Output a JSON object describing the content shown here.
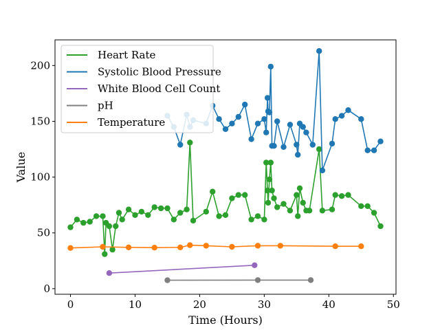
{
  "chart_data": {
    "type": "line",
    "title": "",
    "xlabel": "Time (Hours)",
    "ylabel": "Value",
    "xlim": [
      -2.4,
      50.4
    ],
    "ylim": [
      -5,
      223
    ],
    "xticks": [
      0,
      10,
      20,
      30,
      40,
      50
    ],
    "yticks": [
      0,
      50,
      100,
      150,
      200
    ],
    "grid": false,
    "legend_position": "top-left",
    "series": [
      {
        "name": "Heart Rate",
        "color": "#2ca02c",
        "points": [
          [
            0,
            55
          ],
          [
            1,
            62
          ],
          [
            2,
            59
          ],
          [
            3,
            60
          ],
          [
            4,
            65
          ],
          [
            5,
            65
          ],
          [
            5.3,
            31
          ],
          [
            5.5,
            59
          ],
          [
            6,
            56
          ],
          [
            6.5,
            35
          ],
          [
            7,
            56
          ],
          [
            7.5,
            68
          ],
          [
            8,
            62
          ],
          [
            9,
            71
          ],
          [
            10,
            66
          ],
          [
            11,
            69
          ],
          [
            12,
            66
          ],
          [
            13,
            73
          ],
          [
            14,
            72
          ],
          [
            15,
            72
          ],
          [
            16,
            62
          ],
          [
            17,
            68
          ],
          [
            18,
            71
          ],
          [
            18.5,
            131
          ],
          [
            19,
            61
          ],
          [
            21,
            69
          ],
          [
            22,
            87
          ],
          [
            23,
            65
          ],
          [
            24,
            66
          ],
          [
            25,
            81
          ],
          [
            26,
            84
          ],
          [
            27,
            84
          ],
          [
            28,
            62
          ],
          [
            29,
            65
          ],
          [
            30,
            62
          ],
          [
            30.3,
            113
          ],
          [
            30.5,
            88
          ],
          [
            30.6,
            77
          ],
          [
            30.8,
            98
          ],
          [
            31,
            113
          ],
          [
            31.2,
            88
          ],
          [
            31.5,
            81
          ],
          [
            32,
            73
          ],
          [
            33,
            76
          ],
          [
            34,
            70
          ],
          [
            35,
            84
          ],
          [
            35.2,
            65
          ],
          [
            35.5,
            90
          ],
          [
            36,
            77
          ],
          [
            36.5,
            70
          ],
          [
            37,
            70
          ],
          [
            38.5,
            125
          ],
          [
            39,
            70
          ],
          [
            40.5,
            71
          ],
          [
            41,
            84
          ],
          [
            42,
            83
          ],
          [
            43,
            84
          ],
          [
            45,
            74
          ],
          [
            46,
            74
          ],
          [
            47,
            68
          ],
          [
            48,
            56
          ]
        ]
      },
      {
        "name": "Systolic Blood Pressure",
        "color": "#1f77b4",
        "points": [
          [
            15,
            155
          ],
          [
            16,
            145
          ],
          [
            17,
            129
          ],
          [
            18,
            156
          ],
          [
            18.5,
            145
          ],
          [
            19,
            151
          ],
          [
            21,
            148
          ],
          [
            22,
            164
          ],
          [
            23,
            152
          ],
          [
            24,
            143
          ],
          [
            25,
            148
          ],
          [
            26,
            154
          ],
          [
            27,
            165
          ],
          [
            28,
            134
          ],
          [
            29,
            148
          ],
          [
            30,
            152
          ],
          [
            30.3,
            140
          ],
          [
            30.5,
            171
          ],
          [
            30.6,
            159
          ],
          [
            30.8,
            158
          ],
          [
            31,
            199
          ],
          [
            31.2,
            128
          ],
          [
            31.5,
            128
          ],
          [
            32,
            150
          ],
          [
            33,
            127
          ],
          [
            34,
            147
          ],
          [
            35,
            129
          ],
          [
            35.2,
            120
          ],
          [
            35.5,
            148
          ],
          [
            36,
            145
          ],
          [
            36.5,
            140
          ],
          [
            37.5,
            129
          ],
          [
            38.5,
            213
          ],
          [
            39,
            106
          ],
          [
            40.5,
            130
          ],
          [
            41,
            152
          ],
          [
            42,
            155
          ],
          [
            43,
            160
          ],
          [
            45,
            152
          ],
          [
            46,
            124
          ],
          [
            47,
            124
          ],
          [
            48,
            132
          ]
        ]
      },
      {
        "name": "White Blood Cell Count",
        "color": "#9467bd",
        "points": [
          [
            6,
            14
          ],
          [
            28.5,
            21
          ]
        ]
      },
      {
        "name": "pH",
        "color": "#7f7f7f",
        "points": [
          [
            15,
            7.6
          ],
          [
            29,
            7.7
          ],
          [
            37.2,
            7.7
          ]
        ]
      },
      {
        "name": "Temperature",
        "color": "#ff7f0e",
        "points": [
          [
            0,
            36.5
          ],
          [
            5,
            37.5
          ],
          [
            9,
            37
          ],
          [
            13,
            36.8
          ],
          [
            17,
            37
          ],
          [
            18.5,
            39
          ],
          [
            21,
            38.5
          ],
          [
            25,
            37.5
          ],
          [
            29,
            38.5
          ],
          [
            32.5,
            38.5
          ],
          [
            41,
            38
          ],
          [
            45,
            38
          ]
        ]
      }
    ]
  }
}
